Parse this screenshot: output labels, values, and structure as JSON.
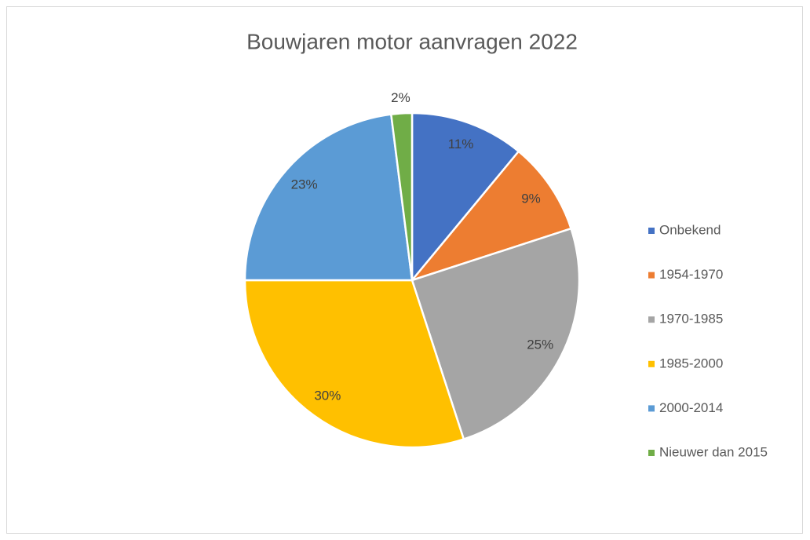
{
  "chart_data": {
    "type": "pie",
    "title": "Bouwjaren motor aanvragen 2022",
    "categories": [
      "Onbekend",
      "1954-1970",
      "1970-1985",
      "1985-2000",
      "2000-2014",
      "Nieuwer dan 2015"
    ],
    "values": [
      11,
      9,
      25,
      30,
      23,
      2
    ],
    "value_labels": [
      "11%",
      "9%",
      "25%",
      "30%",
      "23%",
      "2%"
    ],
    "colors": [
      "#4472c4",
      "#ed7d31",
      "#a5a5a5",
      "#ffc000",
      "#5b9bd5",
      "#70ad47"
    ],
    "legend": "right"
  }
}
